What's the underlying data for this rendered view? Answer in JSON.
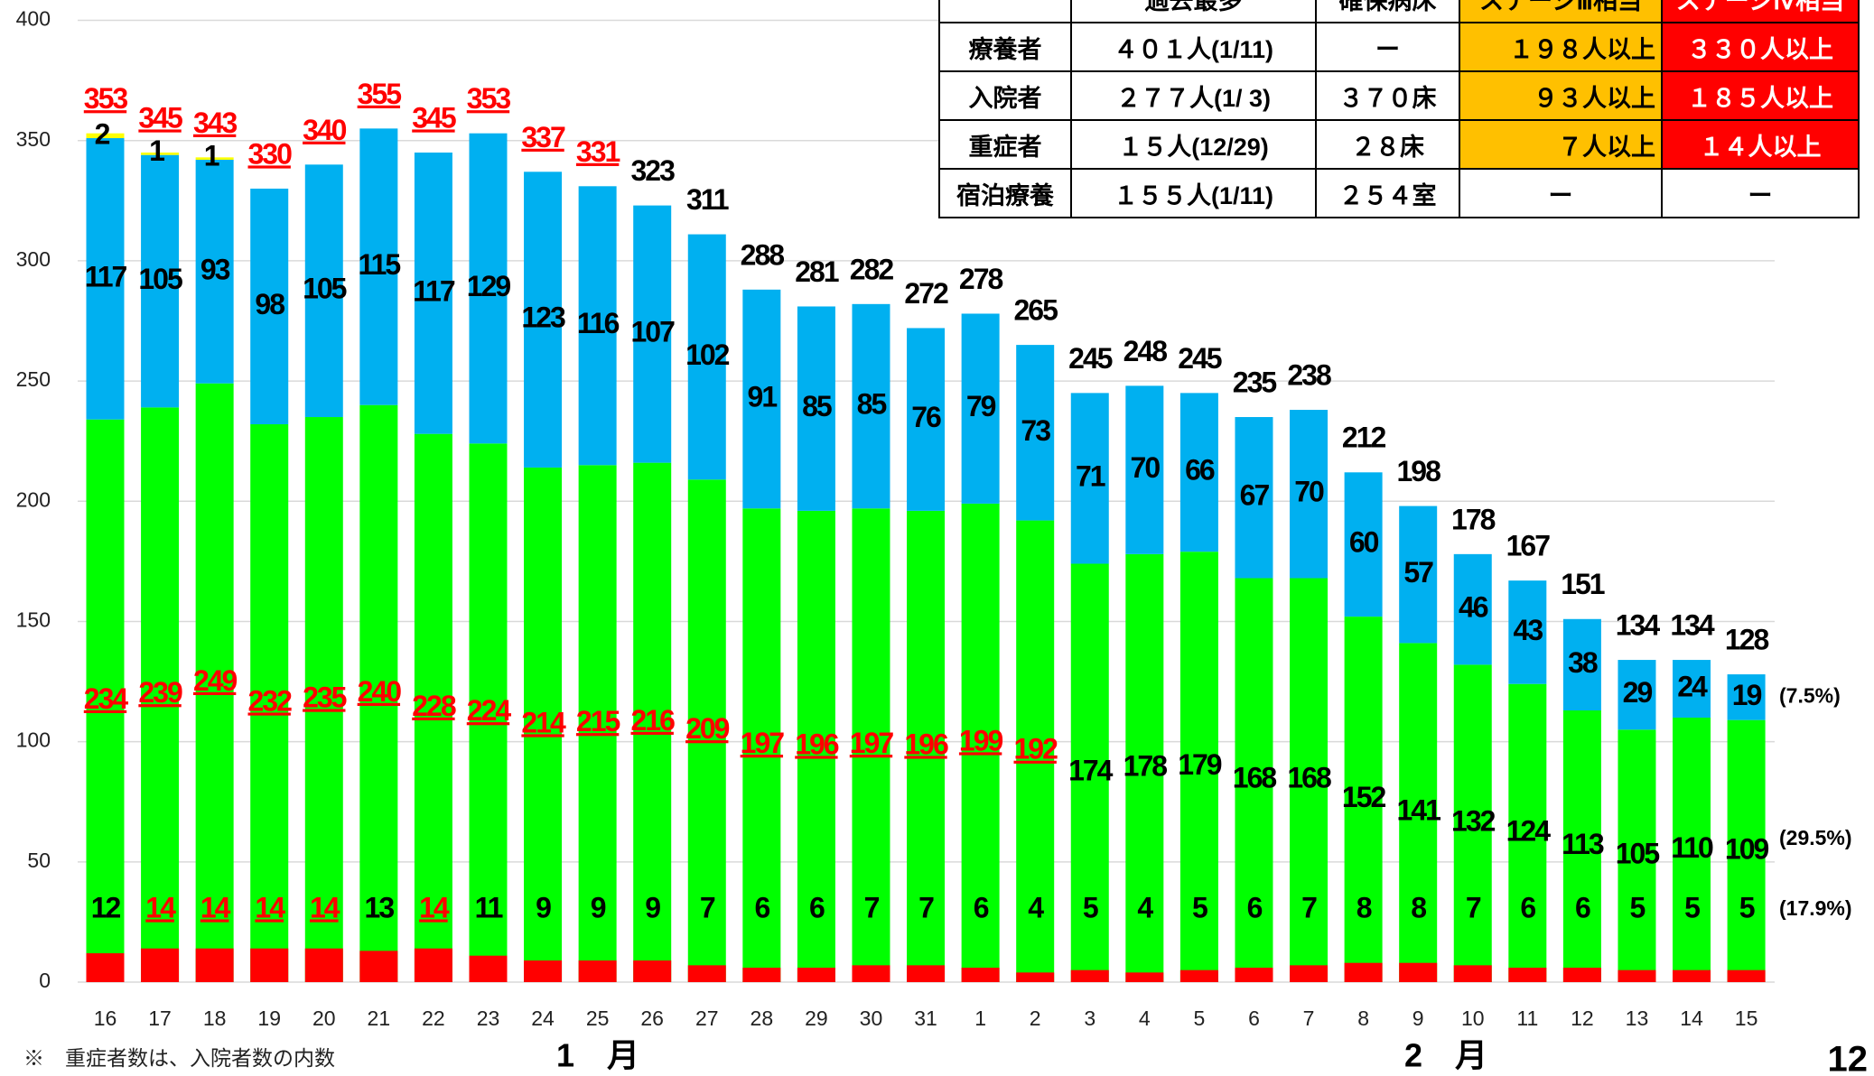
{
  "chart_data": {
    "type": "bar",
    "categories": [
      "16",
      "17",
      "18",
      "19",
      "20",
      "21",
      "22",
      "23",
      "24",
      "25",
      "26",
      "27",
      "28",
      "29",
      "30",
      "31",
      "1",
      "2",
      "3",
      "4",
      "5",
      "6",
      "7",
      "8",
      "9",
      "10",
      "11",
      "12",
      "13",
      "14",
      "15"
    ],
    "series": [
      {
        "color": "#ff0000",
        "values": [
          12,
          14,
          14,
          14,
          14,
          13,
          14,
          11,
          9,
          9,
          9,
          7,
          6,
          6,
          7,
          7,
          6,
          4,
          5,
          4,
          5,
          6,
          7,
          8,
          8,
          7,
          6,
          6,
          5,
          5,
          5
        ],
        "highlighted": [
          false,
          true,
          true,
          true,
          true,
          false,
          true,
          false,
          false,
          false,
          false,
          false,
          false,
          false,
          false,
          false,
          false,
          false,
          false,
          false,
          false,
          false,
          false,
          false,
          false,
          false,
          false,
          false,
          false,
          false,
          false
        ]
      },
      {
        "color": "#00ff00",
        "values": [
          234,
          239,
          249,
          232,
          235,
          240,
          228,
          224,
          214,
          215,
          216,
          209,
          197,
          196,
          197,
          196,
          199,
          192,
          174,
          178,
          179,
          168,
          168,
          152,
          141,
          132,
          124,
          113,
          105,
          110,
          109
        ],
        "highlighted": [
          true,
          true,
          true,
          true,
          true,
          true,
          true,
          true,
          true,
          true,
          true,
          true,
          true,
          true,
          true,
          true,
          true,
          true,
          false,
          false,
          false,
          false,
          false,
          false,
          false,
          false,
          false,
          false,
          false,
          false,
          false
        ]
      },
      {
        "color": "#00b0f0",
        "values": [
          117,
          105,
          93,
          98,
          105,
          115,
          117,
          129,
          123,
          116,
          107,
          102,
          91,
          85,
          85,
          76,
          79,
          73,
          71,
          70,
          66,
          67,
          70,
          60,
          57,
          46,
          43,
          38,
          29,
          24,
          19
        ]
      },
      {
        "color": "#ffff00",
        "values": [
          2,
          1,
          1,
          null,
          null,
          null,
          null,
          null,
          null,
          null,
          null,
          null,
          null,
          null,
          null,
          null,
          null,
          null,
          null,
          null,
          null,
          null,
          null,
          null,
          null,
          null,
          null,
          null,
          null,
          null,
          null
        ]
      }
    ],
    "totals": {
      "values": [
        353,
        345,
        343,
        330,
        340,
        355,
        345,
        353,
        337,
        331,
        323,
        311,
        288,
        281,
        282,
        272,
        278,
        265,
        245,
        248,
        245,
        235,
        238,
        212,
        198,
        178,
        167,
        151,
        134,
        134,
        128
      ],
      "highlighted": [
        true,
        true,
        true,
        true,
        true,
        true,
        true,
        true,
        true,
        true,
        false,
        false,
        false,
        false,
        false,
        false,
        false,
        false,
        false,
        false,
        false,
        false,
        false,
        false,
        false,
        false,
        false,
        false,
        false,
        false,
        false
      ]
    },
    "annotations": [
      "(7.5%)",
      "(29.5%)",
      "(17.9%)"
    ],
    "month_labels": [
      "1　月",
      "2　月"
    ],
    "footnote": "※　重症者数は、入院者数の内数",
    "page_number": "12",
    "ylim": [
      0,
      400
    ],
    "yticks": [
      0,
      50,
      100,
      150,
      200,
      250,
      300,
      350,
      400
    ],
    "grid": true
  },
  "table": {
    "header": [
      "",
      "過去最多",
      "確保病床",
      "ステージⅢ相当",
      "ステージⅣ相当"
    ],
    "rows": [
      [
        "療養者",
        "４０１人(1/11)",
        "ー",
        "１９８人以上",
        "３３０人以上"
      ],
      [
        "入院者",
        "２７７人(1/ 3)",
        "３７０床",
        "９３人以上",
        "１８５人以上"
      ],
      [
        "重症者",
        "１５人(12/29)",
        "２８床",
        "７人以上",
        "１４人以上"
      ],
      [
        "宿泊療養",
        "１５５人(1/11)",
        "２５４室",
        "ー",
        "ー"
      ]
    ]
  }
}
